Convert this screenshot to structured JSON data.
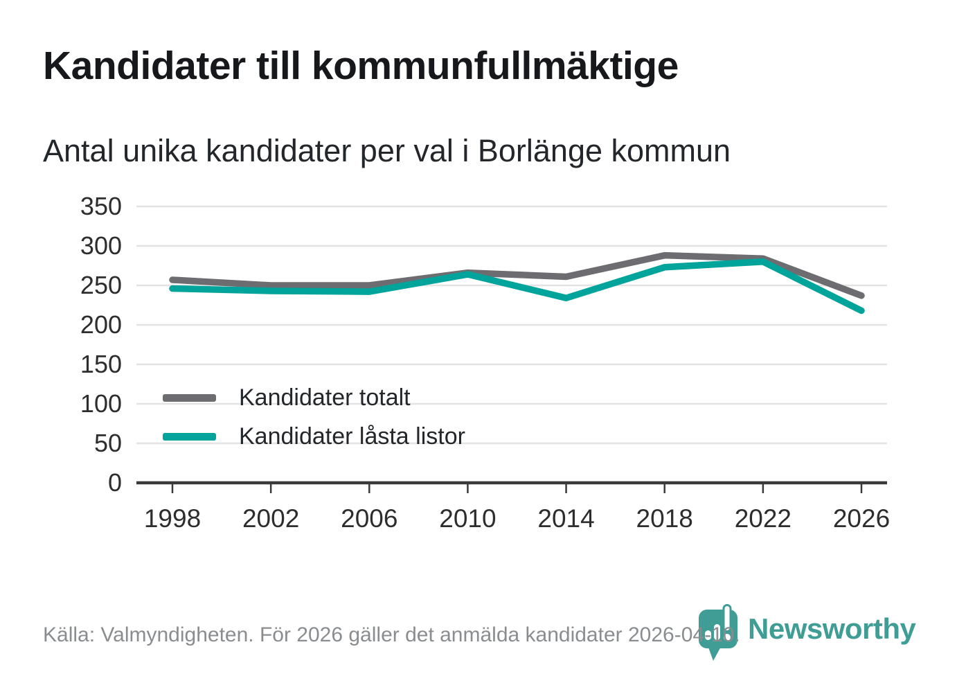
{
  "title": "Kandidater till kommunfullmäktige",
  "subtitle": "Antal unika kandidater per val i Borlänge kommun",
  "source_note": "Källa: Valmyndigheten. För 2026 gäller det anmälda kandidater 2026-04-10.",
  "logo": {
    "name": "Newsworthy",
    "icon": "newsworthy-pin-barchart-icon"
  },
  "colors": {
    "total_line": "#6d6d71",
    "locked_line": "#00a49b",
    "grid": "#e3e3e3",
    "axis": "#3a3a3a",
    "tick_label": "#2d2d2d",
    "title": "#16181c",
    "subtitle": "#23262a",
    "source": "#8a8d8f",
    "logo": "#3f9d96"
  },
  "chart_data": {
    "type": "line",
    "title": "Kandidater till kommunfullmäktige",
    "subtitle": "Antal unika kandidater per val i Borlänge kommun",
    "x": [
      1998,
      2002,
      2006,
      2010,
      2014,
      2018,
      2022,
      2026
    ],
    "series": [
      {
        "name": "Kandidater totalt",
        "color_key": "total_line",
        "values": [
          257,
          250,
          250,
          266,
          261,
          288,
          284,
          237
        ]
      },
      {
        "name": "Kandidater låsta listor",
        "color_key": "locked_line",
        "values": [
          246,
          243,
          242,
          264,
          234,
          273,
          280,
          218
        ]
      }
    ],
    "xlabel": "",
    "ylabel": "",
    "ylim": [
      0,
      350
    ],
    "yticks": [
      0,
      50,
      100,
      150,
      200,
      250,
      300,
      350
    ],
    "grid": true,
    "legend_position": "inside-left"
  }
}
